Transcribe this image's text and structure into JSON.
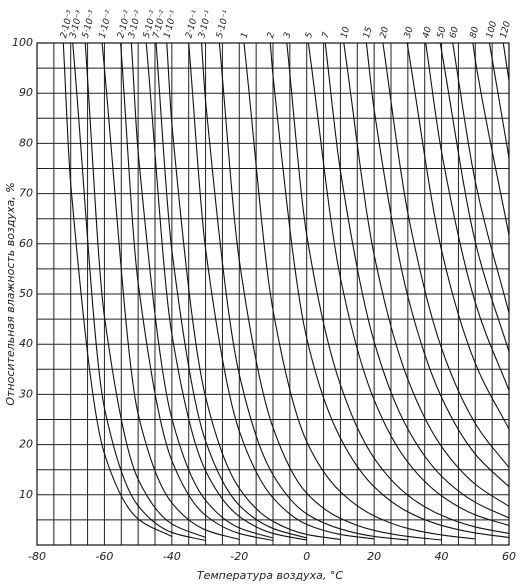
{
  "chart_data": {
    "type": "line",
    "x_label": "Температура воздуха, °С",
    "y_label": "Относительная влажность воздуха, %",
    "xlim": [
      -80,
      60
    ],
    "ylim": [
      0,
      100
    ],
    "xticks": [
      -80,
      -60,
      -40,
      -20,
      0,
      20,
      40,
      60
    ],
    "yticks": [
      10,
      20,
      30,
      40,
      50,
      60,
      70,
      80,
      90,
      100
    ],
    "xgrid": [
      -80,
      -75,
      -70,
      -65,
      -60,
      -55,
      -50,
      -45,
      -40,
      -35,
      -30,
      -25,
      -20,
      -15,
      -10,
      -5,
      0,
      5,
      10,
      15,
      20,
      25,
      30,
      35,
      40,
      45,
      50,
      55,
      60
    ],
    "ygrid": [
      0,
      5,
      10,
      15,
      20,
      25,
      30,
      35,
      40,
      45,
      50,
      55,
      60,
      65,
      70,
      75,
      80,
      85,
      90,
      95,
      100
    ],
    "color": "#111",
    "series": [
      {
        "name": "2·10⁻³",
        "x": [
          -72.2,
          -70,
          -60,
          -50,
          -40
        ],
        "values": [
          100,
          71.9,
          18.2,
          5.2,
          1.7
        ]
      },
      {
        "name": "3·10⁻³",
        "x": [
          -69.4,
          -60,
          -50,
          -40,
          -30
        ],
        "values": [
          100,
          27.3,
          7.8,
          2.5,
          0.9
        ]
      },
      {
        "name": "5·10⁻³",
        "x": [
          -65.7,
          -60,
          -50,
          -40,
          -30
        ],
        "values": [
          100,
          45.5,
          13.1,
          4.2,
          1.5
        ]
      },
      {
        "name": "1·10⁻²",
        "x": [
          -60.7,
          -50,
          -40,
          -30,
          -20
        ],
        "values": [
          100,
          26.1,
          8.4,
          3.0,
          1.1
        ]
      },
      {
        "name": "2·10⁻²",
        "x": [
          -55.2,
          -50,
          -40,
          -30,
          -20,
          -10
        ],
        "values": [
          100,
          52.2,
          16.8,
          5.9,
          2.3,
          0.9
        ]
      },
      {
        "name": "3·10⁻²",
        "x": [
          -52.0,
          -50,
          -40,
          -30,
          -20,
          -10
        ],
        "values": [
          100,
          78.3,
          25.2,
          8.9,
          3.4,
          1.4
        ]
      },
      {
        "name": "5·10⁻²",
        "x": [
          -47.6,
          -40,
          -30,
          -20,
          -10,
          0
        ],
        "values": [
          100,
          42.0,
          14.8,
          5.7,
          2.3,
          1.0
        ]
      },
      {
        "name": "7·10⁻²",
        "x": [
          -44.7,
          -40,
          -30,
          -20,
          -10,
          0
        ],
        "values": [
          100,
          58.7,
          20.7,
          7.9,
          3.3,
          1.4
        ]
      },
      {
        "name": "1·10⁻¹",
        "x": [
          -41.5,
          -40,
          -30,
          -20,
          -10,
          0,
          10
        ],
        "values": [
          100,
          83.9,
          29.5,
          11.3,
          4.7,
          2.1,
          1.1
        ]
      },
      {
        "name": "2·10⁻¹",
        "x": [
          -35.0,
          -30,
          -20,
          -10,
          0,
          10,
          20
        ],
        "values": [
          100,
          59.0,
          22.7,
          9.4,
          4.1,
          2.1,
          1.2
        ]
      },
      {
        "name": "3·10⁻¹",
        "x": [
          -31.2,
          -30,
          -20,
          -10,
          0,
          10,
          20,
          30
        ],
        "values": [
          100,
          88.5,
          34.0,
          14.0,
          6.2,
          3.2,
          1.7,
          1.0
        ]
      },
      {
        "name": "5·10⁻¹",
        "x": [
          -25.9,
          -20,
          -10,
          0,
          10,
          20,
          30,
          40
        ],
        "values": [
          100,
          56.7,
          23.4,
          10.3,
          5.3,
          2.9,
          1.7,
          1.0
        ]
      },
      {
        "name": "1",
        "x": [
          -18.6,
          -10,
          0,
          10,
          20,
          30,
          40,
          50
        ],
        "values": [
          100,
          46.8,
          20.6,
          10.6,
          5.8,
          3.3,
          2.0,
          1.2
        ]
      },
      {
        "name": "2",
        "x": [
          -10.8,
          -10,
          0,
          10,
          20,
          30,
          40,
          50,
          60
        ],
        "values": [
          100,
          93.5,
          41.2,
          21.3,
          11.6,
          6.6,
          3.9,
          2.4,
          1.5
        ]
      },
      {
        "name": "3",
        "x": [
          -5.9,
          0,
          10,
          20,
          30,
          40,
          50,
          60
        ],
        "values": [
          100,
          61.8,
          31.9,
          17.3,
          9.9,
          5.9,
          3.6,
          2.3
        ]
      },
      {
        "name": "5",
        "x": [
          0.5,
          10,
          20,
          30,
          40,
          50,
          60
        ],
        "values": [
          100,
          53.2,
          28.9,
          16.5,
          9.8,
          6.0,
          3.9
        ]
      },
      {
        "name": "7",
        "x": [
          5.5,
          10,
          20,
          30,
          40,
          50,
          60
        ],
        "values": [
          100,
          74.5,
          40.5,
          23.1,
          13.7,
          8.5,
          5.4
        ]
      },
      {
        "name": "10",
        "x": [
          11.0,
          20,
          30,
          40,
          50,
          60
        ],
        "values": [
          100,
          57.8,
          33.0,
          19.6,
          12.1,
          7.7
        ]
      },
      {
        "name": "15",
        "x": [
          17.7,
          20,
          30,
          40,
          50,
          60
        ],
        "values": [
          100,
          86.7,
          49.5,
          29.4,
          18.1,
          11.6
        ]
      },
      {
        "name": "20",
        "x": [
          22.6,
          30,
          40,
          50,
          60
        ],
        "values": [
          100,
          66.1,
          39.2,
          24.2,
          15.4
        ]
      },
      {
        "name": "30",
        "x": [
          29.8,
          40,
          50,
          60
        ],
        "values": [
          100,
          58.7,
          36.2,
          23.1
        ]
      },
      {
        "name": "40",
        "x": [
          35.3,
          40,
          50,
          60
        ],
        "values": [
          100,
          78.3,
          48.3,
          30.8
        ]
      },
      {
        "name": "50",
        "x": [
          39.6,
          50,
          60
        ],
        "values": [
          100,
          60.4,
          38.5
        ]
      },
      {
        "name": "60",
        "x": [
          43.3,
          50,
          60
        ],
        "values": [
          100,
          72.4,
          46.2
        ]
      },
      {
        "name": "80",
        "x": [
          49.3,
          50,
          60
        ],
        "values": [
          100,
          96.6,
          61.7
        ]
      },
      {
        "name": "100",
        "x": [
          54.2,
          60
        ],
        "values": [
          100,
          77.1
        ]
      },
      {
        "name": "120",
        "x": [
          58.3,
          60
        ],
        "values": [
          100,
          92.5
        ]
      }
    ]
  }
}
